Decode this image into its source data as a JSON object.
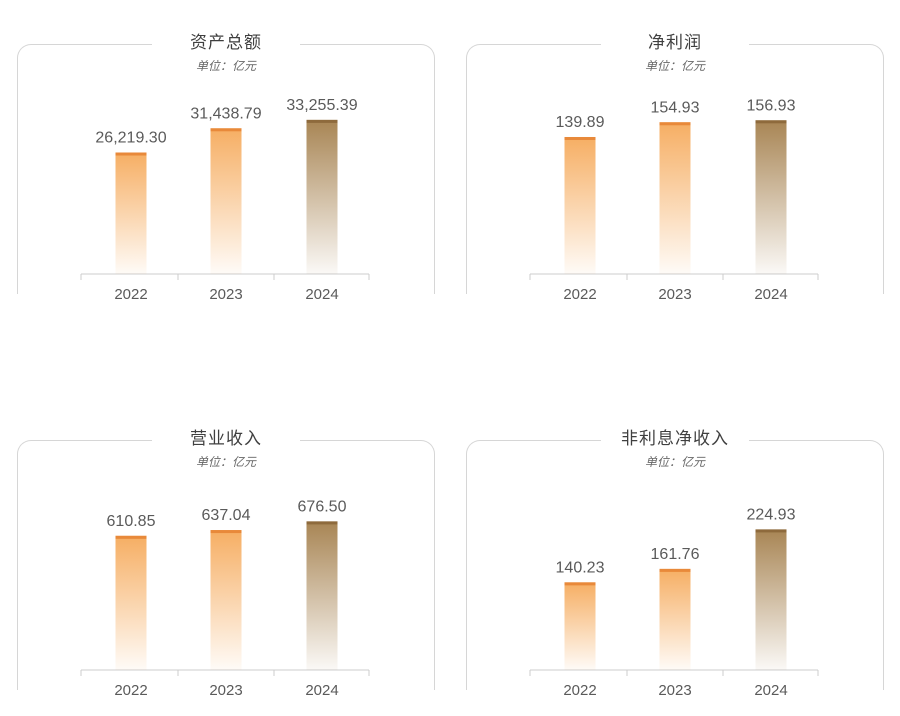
{
  "chart_data": [
    {
      "type": "bar",
      "title": "资产总额",
      "unit": "单位：亿元",
      "categories": [
        "2022",
        "2023",
        "2024"
      ],
      "values": [
        26219.3,
        31438.79,
        33255.39
      ],
      "value_labels": [
        "26,219.30",
        "31,438.79",
        "33,255.39"
      ],
      "ylim": [
        0,
        41000
      ]
    },
    {
      "type": "bar",
      "title": "净利润",
      "unit": "单位：亿元",
      "categories": [
        "2022",
        "2023",
        "2024"
      ],
      "values": [
        139.89,
        154.93,
        156.93
      ],
      "value_labels": [
        "139.89",
        "154.93",
        "156.93"
      ],
      "ylim": [
        0,
        194
      ]
    },
    {
      "type": "bar",
      "title": "营业收入",
      "unit": "单位：亿元",
      "categories": [
        "2022",
        "2023",
        "2024"
      ],
      "values": [
        610.85,
        637.04,
        676.5
      ],
      "value_labels": [
        "610.85",
        "637.04",
        "676.50"
      ],
      "ylim": [
        0,
        865
      ]
    },
    {
      "type": "bar",
      "title": "非利息净收入",
      "unit": "单位：亿元",
      "categories": [
        "2022",
        "2023",
        "2024"
      ],
      "values": [
        140.23,
        161.76,
        224.93
      ],
      "value_labels": [
        "140.23",
        "161.76",
        "224.93"
      ],
      "ylim": [
        0,
        304
      ]
    }
  ],
  "colors": {
    "bar_top_orange": "#f6ae63",
    "bar_top_brown": "#a88554",
    "bar_cap_orange": "#e8893a",
    "bar_cap_brown": "#8e6a3c",
    "frame": "#d6d6d6",
    "axis": "#cccccc"
  }
}
